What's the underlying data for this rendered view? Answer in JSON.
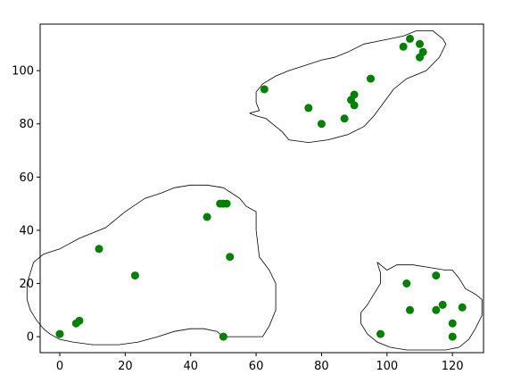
{
  "chart_data": {
    "type": "scatter",
    "title": "",
    "xlabel": "",
    "ylabel": "",
    "xlim": [
      -6,
      129.5
    ],
    "ylim": [
      -6,
      117.5
    ],
    "xticks": [
      0,
      20,
      40,
      60,
      80,
      100,
      120
    ],
    "yticks": [
      0,
      20,
      40,
      60,
      80,
      100
    ],
    "xtick_labels": [
      "0",
      "20",
      "40",
      "60",
      "80",
      "100",
      "120"
    ],
    "ytick_labels": [
      "0",
      "20",
      "40",
      "60",
      "80",
      "100"
    ],
    "grid": false,
    "colors": {
      "points": "#008000",
      "contour": "#000000",
      "axes": "#000000"
    },
    "series": [
      {
        "points": [
          [
            0,
            1
          ],
          [
            5,
            5
          ],
          [
            6,
            6
          ],
          [
            12,
            33
          ],
          [
            23,
            23
          ],
          [
            45,
            45
          ],
          [
            49,
            50
          ],
          [
            50,
            50
          ],
          [
            51,
            50
          ],
          [
            52,
            30
          ],
          [
            50,
            0
          ],
          [
            62.5,
            93
          ],
          [
            76,
            86
          ],
          [
            80,
            80
          ],
          [
            87,
            82
          ],
          [
            89,
            89
          ],
          [
            90,
            91
          ],
          [
            90,
            87
          ],
          [
            95,
            97
          ],
          [
            105,
            109
          ],
          [
            107,
            112
          ],
          [
            110,
            110
          ],
          [
            110,
            105
          ],
          [
            111,
            107
          ],
          [
            98,
            1
          ],
          [
            106,
            20
          ],
          [
            107,
            10
          ],
          [
            115,
            23
          ],
          [
            115,
            10
          ],
          [
            117,
            12
          ],
          [
            120,
            5
          ],
          [
            120,
            0
          ],
          [
            123,
            11
          ]
        ]
      }
    ],
    "contours": [
      [
        [
          -10,
          20
        ],
        [
          -8,
          28
        ],
        [
          -5,
          31
        ],
        [
          0,
          33
        ],
        [
          6,
          37
        ],
        [
          14,
          41
        ],
        [
          20,
          47
        ],
        [
          26,
          52
        ],
        [
          31,
          54
        ],
        [
          35,
          56
        ],
        [
          40,
          57
        ],
        [
          45,
          57
        ],
        [
          50,
          56
        ],
        [
          55,
          52
        ],
        [
          57,
          49
        ],
        [
          60,
          47
        ],
        [
          60,
          40
        ],
        [
          61,
          30
        ],
        [
          64,
          25
        ],
        [
          66,
          20
        ],
        [
          66,
          10
        ],
        [
          64,
          4
        ],
        [
          62,
          0
        ],
        [
          58,
          0
        ],
        [
          55,
          0
        ],
        [
          50,
          0
        ],
        [
          48,
          2
        ],
        [
          44,
          3
        ],
        [
          40,
          3
        ],
        [
          35,
          2
        ],
        [
          30,
          0
        ],
        [
          24,
          -2
        ],
        [
          18,
          -3
        ],
        [
          10,
          -3
        ],
        [
          4,
          -2
        ],
        [
          0,
          -1
        ],
        [
          -3,
          1
        ],
        [
          -5,
          3
        ],
        [
          -7,
          6
        ],
        [
          -9,
          10
        ],
        [
          -10,
          14
        ],
        [
          -10,
          20
        ]
      ],
      [
        [
          58,
          84
        ],
        [
          61,
          85
        ],
        [
          60,
          88
        ],
        [
          60,
          92
        ],
        [
          62,
          95
        ],
        [
          66,
          98
        ],
        [
          70,
          100
        ],
        [
          75,
          102
        ],
        [
          80,
          104
        ],
        [
          84,
          105
        ],
        [
          88,
          107
        ],
        [
          93,
          110
        ],
        [
          97,
          111
        ],
        [
          101,
          112
        ],
        [
          105,
          113
        ],
        [
          109,
          115
        ],
        [
          114,
          115
        ],
        [
          117,
          112
        ],
        [
          118,
          110
        ],
        [
          116,
          105
        ],
        [
          112,
          100
        ],
        [
          106,
          97
        ],
        [
          102,
          93
        ],
        [
          99,
          88
        ],
        [
          96,
          83
        ],
        [
          93,
          79
        ],
        [
          88,
          76
        ],
        [
          82,
          74
        ],
        [
          76,
          73
        ],
        [
          70,
          74
        ],
        [
          68,
          77
        ],
        [
          65,
          80
        ],
        [
          63,
          82
        ],
        [
          60,
          83
        ],
        [
          58,
          84
        ]
      ],
      [
        [
          97,
          28
        ],
        [
          99,
          26
        ],
        [
          100,
          25
        ],
        [
          103,
          27
        ],
        [
          108,
          27
        ],
        [
          113,
          26
        ],
        [
          118,
          25
        ],
        [
          120,
          25
        ],
        [
          122,
          22
        ],
        [
          124,
          18
        ],
        [
          127,
          16
        ],
        [
          129,
          14
        ],
        [
          129,
          8
        ],
        [
          127,
          3
        ],
        [
          125,
          -1
        ],
        [
          122,
          -4
        ],
        [
          118,
          -5
        ],
        [
          112,
          -5
        ],
        [
          106,
          -5
        ],
        [
          101,
          -4
        ],
        [
          97,
          -2
        ],
        [
          94,
          1
        ],
        [
          92,
          5
        ],
        [
          92,
          9
        ],
        [
          94,
          12
        ],
        [
          96,
          16
        ],
        [
          98,
          20
        ],
        [
          98,
          24
        ],
        [
          97,
          28
        ]
      ]
    ]
  }
}
